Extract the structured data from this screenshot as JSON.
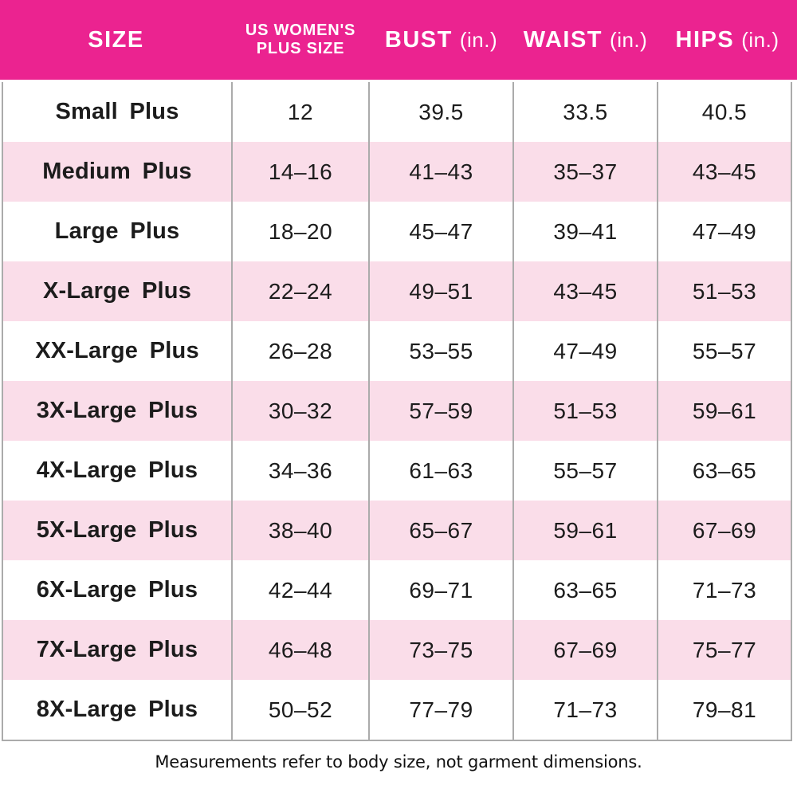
{
  "colors": {
    "header_bg": "#EB2390",
    "row_alt": "#FADDE9",
    "divider": "#ABABAB",
    "text": "#1C1C1C"
  },
  "header": {
    "size_label": "SIZE",
    "plus_size_line1": "US WOMEN'S",
    "plus_size_line2": "PLUS SIZE",
    "bust_label": "BUST",
    "bust_unit": "(in.)",
    "waist_label": "WAIST",
    "waist_unit": "(in.)",
    "hips_label": "HIPS",
    "hips_unit": "(in.)"
  },
  "chart_data": {
    "type": "table",
    "title": "Women's plus size chart",
    "columns": [
      "SIZE",
      "US WOMEN'S PLUS SIZE",
      "BUST (in.)",
      "WAIST (in.)",
      "HIPS (in.)"
    ],
    "rows": [
      {
        "size": "Small Plus",
        "us_plus_size": "12",
        "bust": "39.5",
        "waist": "33.5",
        "hips": "40.5"
      },
      {
        "size": "Medium Plus",
        "us_plus_size": "14–16",
        "bust": "41–43",
        "waist": "35–37",
        "hips": "43–45"
      },
      {
        "size": "Large Plus",
        "us_plus_size": "18–20",
        "bust": "45–47",
        "waist": "39–41",
        "hips": "47–49"
      },
      {
        "size": "X-Large Plus",
        "us_plus_size": "22–24",
        "bust": "49–51",
        "waist": "43–45",
        "hips": "51–53"
      },
      {
        "size": "XX-Large Plus",
        "us_plus_size": "26–28",
        "bust": "53–55",
        "waist": "47–49",
        "hips": "55–57"
      },
      {
        "size": "3X-Large Plus",
        "us_plus_size": "30–32",
        "bust": "57–59",
        "waist": "51–53",
        "hips": "59–61"
      },
      {
        "size": "4X-Large Plus",
        "us_plus_size": "34–36",
        "bust": "61–63",
        "waist": "55–57",
        "hips": "63–65"
      },
      {
        "size": "5X-Large Plus",
        "us_plus_size": "38–40",
        "bust": "65–67",
        "waist": "59–61",
        "hips": "67–69"
      },
      {
        "size": "6X-Large Plus",
        "us_plus_size": "42–44",
        "bust": "69–71",
        "waist": "63–65",
        "hips": "71–73"
      },
      {
        "size": "7X-Large Plus",
        "us_plus_size": "46–48",
        "bust": "73–75",
        "waist": "67–69",
        "hips": "75–77"
      },
      {
        "size": "8X-Large Plus",
        "us_plus_size": "50–52",
        "bust": "77–79",
        "waist": "71–73",
        "hips": "79–81"
      }
    ]
  },
  "footnote": "Measurements refer to body size, not garment dimensions."
}
